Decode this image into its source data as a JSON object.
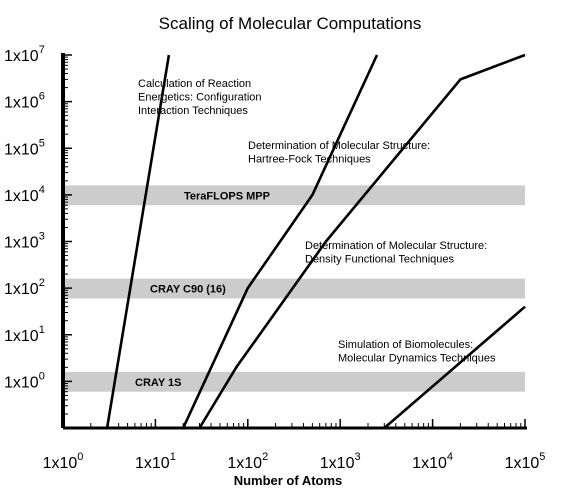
{
  "chart_data": {
    "type": "line",
    "title": "Scaling of Molecular Computations",
    "xlabel": "Number of Atoms",
    "ylabel": "",
    "xscale": "log",
    "yscale": "log",
    "xlim": [
      1,
      100000
    ],
    "ylim": [
      0.1,
      10000000
    ],
    "grid": false,
    "x_ticks": [
      {
        "value": 1,
        "mantissa": "1x10",
        "exp": "0"
      },
      {
        "value": 10,
        "mantissa": "1x10",
        "exp": "1"
      },
      {
        "value": 100,
        "mantissa": "1x10",
        "exp": "2"
      },
      {
        "value": 1000,
        "mantissa": "1x10",
        "exp": "3"
      },
      {
        "value": 10000,
        "mantissa": "1x10",
        "exp": "4"
      },
      {
        "value": 100000,
        "mantissa": "1x10",
        "exp": "5"
      }
    ],
    "y_ticks": [
      {
        "value": 1,
        "mantissa": "1x10",
        "exp": "0"
      },
      {
        "value": 10,
        "mantissa": "1x10",
        "exp": "1"
      },
      {
        "value": 100,
        "mantissa": "1x10",
        "exp": "2"
      },
      {
        "value": 1000,
        "mantissa": "1x10",
        "exp": "3"
      },
      {
        "value": 10000,
        "mantissa": "1x10",
        "exp": "4"
      },
      {
        "value": 100000,
        "mantissa": "1x10",
        "exp": "5"
      },
      {
        "value": 1000000,
        "mantissa": "1x10",
        "exp": "6"
      },
      {
        "value": 10000000,
        "mantissa": "1x10",
        "exp": "7"
      }
    ],
    "bands": [
      {
        "label": "TeraFLOPS MPP",
        "y_low": 6000,
        "y_high": 16000,
        "color": "#cccccc"
      },
      {
        "label": "CRAY C90 (16)",
        "y_low": 60,
        "y_high": 160,
        "color": "#cccccc"
      },
      {
        "label": "CRAY 1S",
        "y_low": 0.6,
        "y_high": 1.6,
        "color": "#cccccc"
      }
    ],
    "series": [
      {
        "lines": [
          "Calculation of Reaction",
          "Energetics: Configuration",
          "Interaction Techniques"
        ],
        "points": [
          [
            3,
            0.1
          ],
          [
            14,
            10000000
          ]
        ]
      },
      {
        "lines": [
          "Determination of Molecular Structure:",
          "Hartree-Fock Techniques"
        ],
        "points": [
          [
            20,
            0.1
          ],
          [
            100,
            100
          ],
          [
            500,
            10000
          ],
          [
            2500,
            10000000
          ]
        ]
      },
      {
        "lines": [
          "Determination of Molecular Structure:",
          "Density Functional Techniques"
        ],
        "points": [
          [
            30,
            0.1
          ],
          [
            75,
            2
          ],
          [
            700,
            1000
          ],
          [
            20000,
            3000000
          ],
          [
            100000,
            10000000
          ]
        ]
      },
      {
        "lines": [
          "Simulation of Biomolecules:",
          "Molecular Dynamics Techniques"
        ],
        "points": [
          [
            3000,
            0.1
          ],
          [
            100000,
            40
          ]
        ]
      }
    ]
  }
}
